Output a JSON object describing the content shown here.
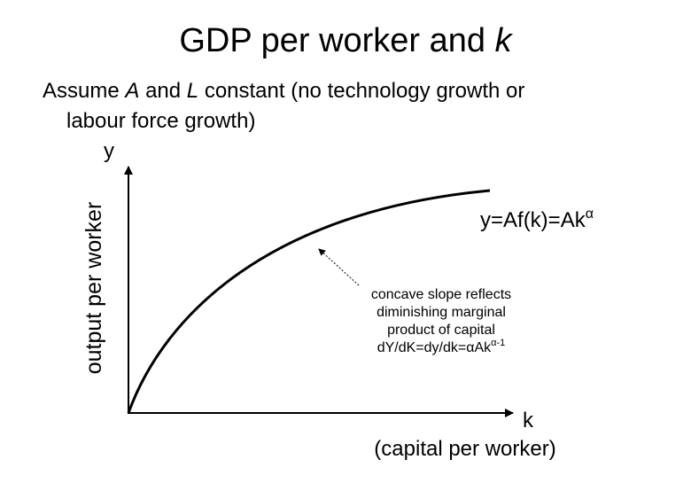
{
  "header": {
    "title": {
      "text": "GDP per worker and",
      "variable": "k"
    }
  },
  "subtitle": {
    "parts": [
      "Assume",
      "A",
      "and",
      "L",
      "constant (no technology growth or",
      "labour force growth)"
    ]
  },
  "diagram": {
    "y_axis_symbol": "y",
    "y_axis_label": "output per worker",
    "x_axis_symbol": "k",
    "x_axis_label": "(capital per worker)",
    "curve_label": {
      "text": "y=Af(k)=Ak",
      "superscript": "α"
    },
    "annotation": {
      "lines": [
        "concave slope reflects",
        "diminishing marginal",
        "product of capital"
      ],
      "formula": {
        "text": "dY/dK=dy/dk=αAk",
        "superscript": "α-1"
      }
    }
  }
}
